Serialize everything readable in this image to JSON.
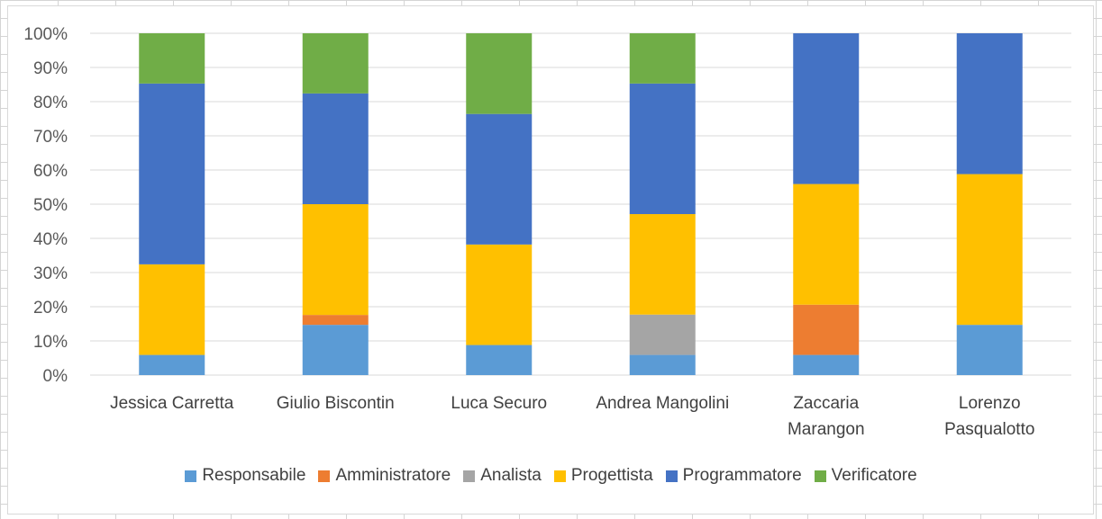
{
  "chart_data": {
    "type": "bar",
    "stacked": true,
    "percent": true,
    "categories": [
      "Jessica Carretta",
      "Giulio Biscontin",
      "Luca Securo",
      "Andrea Mangolini",
      "Zaccaria Marangon",
      "Lorenzo Pasqualotto"
    ],
    "series": [
      {
        "name": "Responsabile",
        "color": "#5B9BD5",
        "values": [
          5.9,
          14.7,
          8.8,
          5.9,
          5.9,
          14.7
        ]
      },
      {
        "name": "Amministratore",
        "color": "#ED7D31",
        "values": [
          0,
          2.9,
          0,
          0,
          14.7,
          0
        ]
      },
      {
        "name": "Analista",
        "color": "#A5A5A5",
        "values": [
          0,
          0,
          0,
          11.8,
          0,
          0
        ]
      },
      {
        "name": "Progettista",
        "color": "#FFC000",
        "values": [
          26.5,
          32.4,
          29.4,
          29.4,
          35.3,
          44.1
        ]
      },
      {
        "name": "Programmatore",
        "color": "#4472C4",
        "values": [
          52.9,
          32.4,
          38.2,
          38.2,
          44.1,
          41.2
        ]
      },
      {
        "name": "Verificatore",
        "color": "#70AD47",
        "values": [
          14.7,
          17.6,
          23.6,
          14.7,
          0,
          0
        ]
      }
    ],
    "y_ticks": [
      "0%",
      "10%",
      "20%",
      "30%",
      "40%",
      "50%",
      "60%",
      "70%",
      "80%",
      "90%",
      "100%"
    ],
    "ylim": [
      0,
      100
    ],
    "grid": true,
    "legend_position": "bottom",
    "title": "",
    "xlabel": "",
    "ylabel": ""
  }
}
